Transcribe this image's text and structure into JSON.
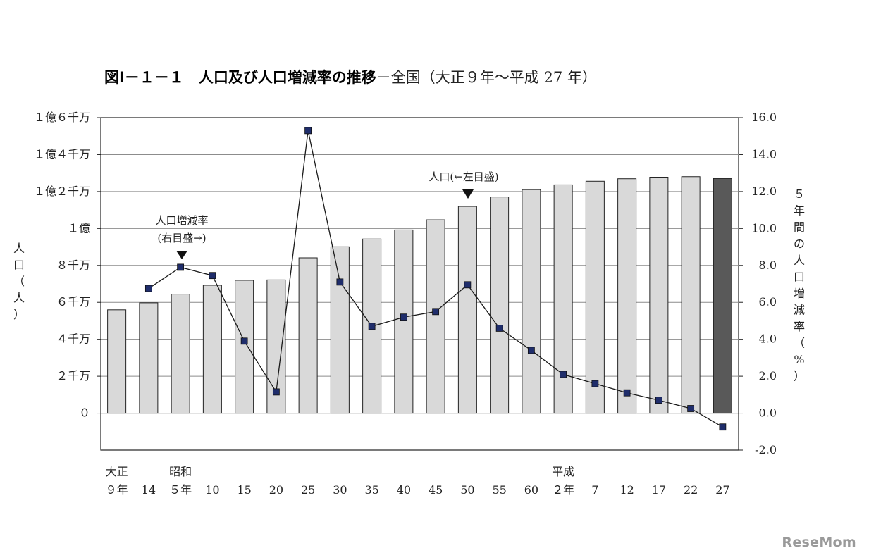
{
  "title": {
    "bold": "図Ⅰ－１－１　人口及び人口増減率の推移",
    "light": "－全国（大正９年～平成 27 年）"
  },
  "chart_data": {
    "type": "bar+line",
    "categories": [
      "大正９年",
      "14",
      "昭和５年",
      "10",
      "15",
      "20",
      "25",
      "30",
      "35",
      "40",
      "45",
      "50",
      "55",
      "60",
      "平成２年",
      "7",
      "12",
      "17",
      "22",
      "27"
    ],
    "x_tick_era_labels": [
      "大正",
      "",
      "昭和",
      "",
      "",
      "",
      "",
      "",
      "",
      "",
      "",
      "",
      "",
      "",
      "平成",
      "",
      "",
      "",
      "",
      ""
    ],
    "x_tick_year_labels": [
      "９年",
      "14",
      "５年",
      "10",
      "15",
      "20",
      "25",
      "30",
      "35",
      "40",
      "45",
      "50",
      "55",
      "60",
      "２年",
      "7",
      "12",
      "17",
      "22",
      "27"
    ],
    "series": [
      {
        "name": "人口（←左目盛）",
        "axis": "left",
        "type": "bar",
        "unit": "人",
        "values": [
          55960000,
          59740000,
          64450000,
          69250000,
          71930000,
          72150000,
          84110000,
          90080000,
          94300000,
          99210000,
          104670000,
          111940000,
          117060000,
          121050000,
          123610000,
          125570000,
          126930000,
          127770000,
          128060000,
          127090000
        ],
        "highlight_last": true
      },
      {
        "name": "人口増減率（右目盛→）",
        "axis": "right",
        "type": "line",
        "unit": "%",
        "values": [
          null,
          6.75,
          7.9,
          7.45,
          3.9,
          1.15,
          15.3,
          7.1,
          4.7,
          5.2,
          5.5,
          6.95,
          4.6,
          3.4,
          2.1,
          1.6,
          1.1,
          0.7,
          0.25,
          -0.75
        ]
      }
    ],
    "y_left": {
      "label": "人口（人）",
      "ticks": [
        "１億６千万",
        "１億４千万",
        "１億２千万",
        "１億",
        "８千万",
        "６千万",
        "４千万",
        "２千万",
        "０"
      ],
      "tick_values": [
        160000000,
        140000000,
        120000000,
        100000000,
        80000000,
        60000000,
        40000000,
        20000000,
        0
      ],
      "range": [
        -20000000,
        160000000
      ]
    },
    "y_right": {
      "label": "５年間の人口増減率（%）",
      "ticks": [
        "16.0",
        "14.0",
        "12.0",
        "10.0",
        "8.0",
        "6.0",
        "4.0",
        "2.0",
        "0.0",
        "-2.0"
      ],
      "tick_values": [
        16,
        14,
        12,
        10,
        8,
        6,
        4,
        2,
        0,
        -2
      ],
      "range": [
        -2,
        16
      ]
    },
    "annotations": {
      "rate_label_line1": "人口増減率",
      "rate_label_line2": "(右目盛→)",
      "pop_label": "人口(←左目盛)"
    },
    "grid": true,
    "colors": {
      "bar_fill": "#d9d9d9",
      "bar_highlight": "#595959",
      "line": "#1a1a1a",
      "marker": "#1f2d6b",
      "gridline": "#8c8c8c",
      "axis": "#222222"
    }
  },
  "watermark": "ReseMom"
}
